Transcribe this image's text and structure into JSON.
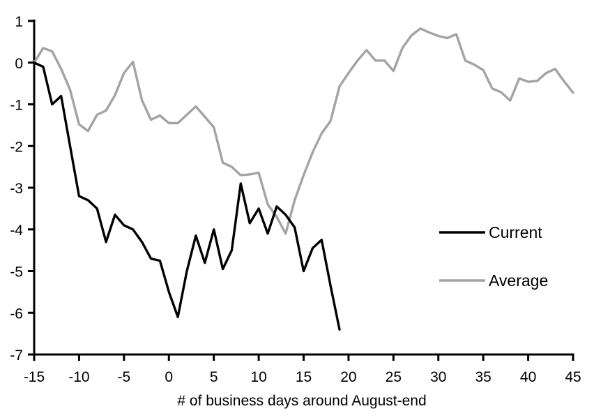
{
  "chart_data": {
    "type": "line",
    "title": "",
    "xlabel": "# of business days around August-end",
    "ylabel": "",
    "xlim": [
      -15,
      45
    ],
    "ylim": [
      -7,
      1
    ],
    "grid": false,
    "legend_position": "inside-right",
    "x_ticks": [
      -15,
      -10,
      -5,
      0,
      5,
      10,
      15,
      20,
      25,
      30,
      35,
      40,
      45
    ],
    "y_ticks": [
      1,
      0,
      -1,
      -2,
      -3,
      -4,
      -5,
      -6,
      -7
    ],
    "axis_color": "#000000",
    "series": [
      {
        "name": "Average",
        "color": "#a3a3a3",
        "x": [
          -15,
          -14,
          -13,
          -12,
          -11,
          -10,
          -9,
          -8,
          -7,
          -6,
          -5,
          -4,
          -3,
          -2,
          -1,
          0,
          1,
          2,
          3,
          4,
          5,
          6,
          7,
          8,
          9,
          10,
          11,
          12,
          13,
          14,
          15,
          16,
          17,
          18,
          19,
          20,
          21,
          22,
          23,
          24,
          25,
          26,
          27,
          28,
          29,
          30,
          31,
          32,
          33,
          34,
          35,
          36,
          37,
          38,
          39,
          40,
          41,
          42,
          43,
          44,
          45
        ],
        "y": [
          0,
          0.35,
          0.27,
          -0.15,
          -0.65,
          -1.48,
          -1.64,
          -1.25,
          -1.15,
          -0.78,
          -0.25,
          0.02,
          -0.9,
          -1.37,
          -1.27,
          -1.45,
          -1.45,
          -1.25,
          -1.05,
          -1.3,
          -1.55,
          -2.4,
          -2.5,
          -2.7,
          -2.68,
          -2.64,
          -3.4,
          -3.7,
          -4.1,
          -3.3,
          -2.7,
          -2.15,
          -1.7,
          -1.4,
          -0.57,
          -0.25,
          0.05,
          0.3,
          0.05,
          0.05,
          -0.2,
          0.35,
          0.65,
          0.82,
          0.72,
          0.64,
          0.59,
          0.68,
          0.05,
          -0.05,
          -0.18,
          -0.62,
          -0.71,
          -0.91,
          -0.38,
          -0.46,
          -0.44,
          -0.25,
          -0.15,
          -0.45,
          -0.72
        ]
      },
      {
        "name": "Current",
        "color": "#000000",
        "x": [
          -15,
          -14,
          -13,
          -12,
          -11,
          -10,
          -9,
          -8,
          -7,
          -6,
          -5,
          -4,
          -3,
          -2,
          -1,
          0,
          1,
          2,
          3,
          4,
          5,
          6,
          7,
          8,
          9,
          10,
          11,
          12,
          13,
          14,
          15,
          16,
          17,
          18,
          19
        ],
        "y": [
          0,
          -0.1,
          -1.0,
          -0.8,
          -2.0,
          -3.2,
          -3.3,
          -3.5,
          -4.3,
          -3.65,
          -3.9,
          -4.0,
          -4.3,
          -4.7,
          -4.75,
          -5.5,
          -6.1,
          -5.0,
          -4.15,
          -4.8,
          -4.0,
          -4.95,
          -4.5,
          -2.9,
          -3.85,
          -3.5,
          -4.1,
          -3.45,
          -3.65,
          -3.95,
          -5.0,
          -4.45,
          -4.25,
          -5.35,
          -6.4
        ]
      }
    ],
    "legend": {
      "entries": [
        "Current",
        "Average"
      ]
    }
  }
}
